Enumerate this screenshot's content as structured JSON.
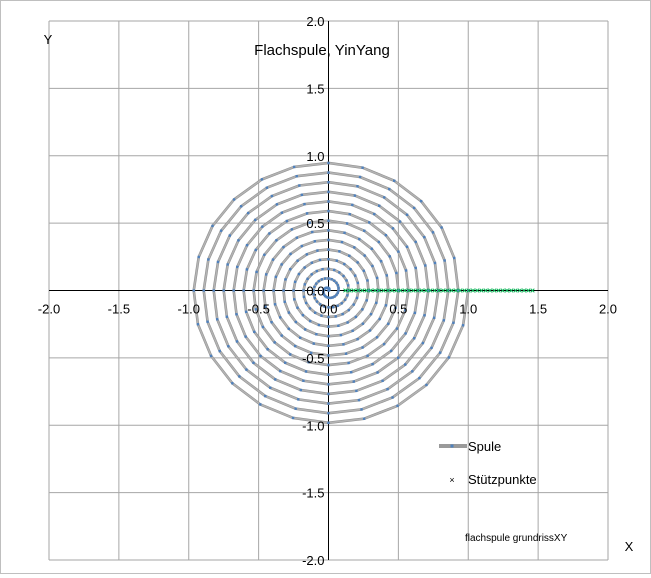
{
  "chart_data": {
    "type": "scatter",
    "title": "Flachspule, YinYang",
    "xlabel": "X",
    "ylabel": "Y",
    "xlim": [
      -2.0,
      2.0
    ],
    "ylim": [
      -2.0,
      2.0
    ],
    "x_ticks": [
      "-2.0",
      "-1.5",
      "-1.0",
      "-0.5",
      "0.0",
      "0.5",
      "1.0",
      "1.5",
      "2.0"
    ],
    "y_ticks": [
      "2.0",
      "1.5",
      "1.0",
      "0.5",
      "0.0",
      "-0.5",
      "-1.0",
      "-1.5",
      "-2.0"
    ],
    "grid": true,
    "legend_position": "bottom-right",
    "annotation": "flachspule grundrissXY",
    "series": [
      {
        "name": "Spule",
        "style": "line-with-markers",
        "color": "#b3b3b3",
        "marker_color": "#4f81bd",
        "description_spiral": {
          "r_start": 0.0,
          "r_end": 1.0,
          "turns": 14,
          "points_per_turn": 24,
          "start_angle_deg": 0,
          "direction": "counterclockwise"
        }
      },
      {
        "name": "Stützpunkte",
        "style": "markers",
        "marker": "x",
        "color": "#00b050",
        "x_start": 0.12,
        "x_end": 1.46,
        "count": 45,
        "y": 0.0
      }
    ]
  }
}
